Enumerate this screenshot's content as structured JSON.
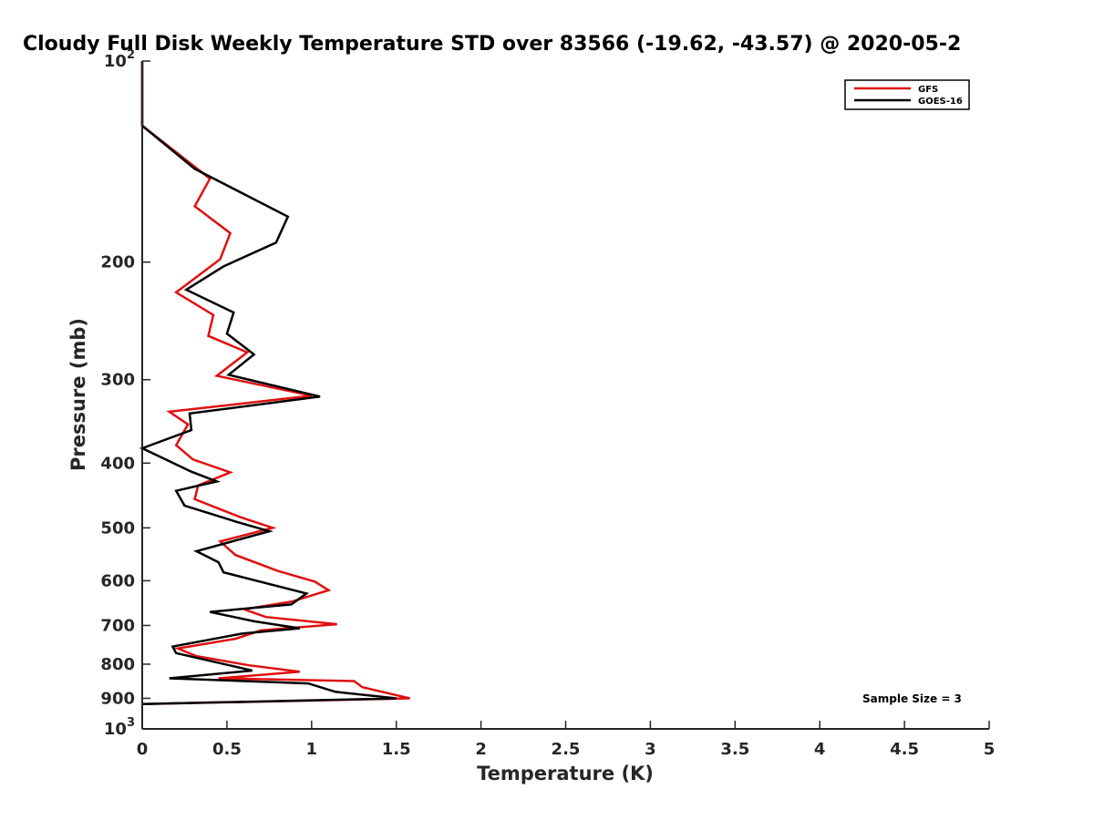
{
  "chart_data": {
    "type": "line",
    "title": "Cloudy Full Disk Weekly Temperature STD over 83566 (-19.62, -43.57) @ 2020-05-2",
    "xlabel": "Temperature (K)",
    "ylabel": "Pressure (mb)",
    "xlim": [
      0,
      5
    ],
    "ylim": [
      100,
      1000
    ],
    "yscale": "log",
    "y_reversed": true,
    "x_ticks": [
      "0",
      "0.5",
      "1",
      "1.5",
      "2",
      "2.5",
      "3",
      "3.5",
      "4",
      "4.5",
      "5"
    ],
    "y_ticks": [
      {
        "value": 100,
        "base": "10",
        "exp": "2"
      },
      {
        "value": 200,
        "label": "200"
      },
      {
        "value": 300,
        "label": "300"
      },
      {
        "value": 400,
        "label": "400"
      },
      {
        "value": 500,
        "label": "500"
      },
      {
        "value": 600,
        "label": "600"
      },
      {
        "value": 700,
        "label": "700"
      },
      {
        "value": 800,
        "label": "800"
      },
      {
        "value": 900,
        "label": "900"
      },
      {
        "value": 1000,
        "base": "10",
        "exp": "3"
      }
    ],
    "legend_position": "top-right",
    "annotation": "Sample Size = 3",
    "series": [
      {
        "name": "GFS",
        "color": "#e01010",
        "points": [
          [
            0,
            100
          ],
          [
            0,
            125
          ],
          [
            0.4,
            150
          ],
          [
            0.31,
            165
          ],
          [
            0.52,
            181
          ],
          [
            0.46,
            198
          ],
          [
            0.2,
            222
          ],
          [
            0.42,
            240
          ],
          [
            0.39,
            258
          ],
          [
            0.62,
            273
          ],
          [
            0.44,
            296
          ],
          [
            1.0,
            317
          ],
          [
            0.16,
            335
          ],
          [
            0.27,
            350
          ],
          [
            0.2,
            376
          ],
          [
            0.3,
            395
          ],
          [
            0.52,
            413
          ],
          [
            0.33,
            432
          ],
          [
            0.31,
            453
          ],
          [
            0.58,
            482
          ],
          [
            0.77,
            500
          ],
          [
            0.46,
            524
          ],
          [
            0.55,
            549
          ],
          [
            0.8,
            580
          ],
          [
            1.02,
            602
          ],
          [
            1.1,
            620
          ],
          [
            0.88,
            645
          ],
          [
            0.6,
            662
          ],
          [
            0.73,
            680
          ],
          [
            1.15,
            697
          ],
          [
            0.7,
            712
          ],
          [
            0.55,
            733
          ],
          [
            0.21,
            758
          ],
          [
            0.32,
            778
          ],
          [
            0.63,
            803
          ],
          [
            0.93,
            821
          ],
          [
            0.45,
            840
          ],
          [
            1.25,
            848
          ],
          [
            1.3,
            866
          ],
          [
            1.58,
            900
          ],
          [
            0,
            918
          ]
        ]
      },
      {
        "name": "GOES-16",
        "color": "#000000",
        "points": [
          [
            0,
            100
          ],
          [
            0,
            125
          ],
          [
            0.31,
            145
          ],
          [
            0.86,
            171
          ],
          [
            0.79,
            187
          ],
          [
            0.48,
            203
          ],
          [
            0.26,
            220
          ],
          [
            0.54,
            238
          ],
          [
            0.5,
            256
          ],
          [
            0.66,
            275
          ],
          [
            0.51,
            295
          ],
          [
            1.05,
            318
          ],
          [
            0.28,
            337
          ],
          [
            0.29,
            357
          ],
          [
            0.0,
            380
          ],
          [
            0.29,
            412
          ],
          [
            0.44,
            426
          ],
          [
            0.2,
            440
          ],
          [
            0.25,
            463
          ],
          [
            0.56,
            490
          ],
          [
            0.75,
            506
          ],
          [
            0.32,
            542
          ],
          [
            0.45,
            563
          ],
          [
            0.48,
            583
          ],
          [
            0.97,
            627
          ],
          [
            0.88,
            651
          ],
          [
            0.4,
            668
          ],
          [
            0.66,
            690
          ],
          [
            0.93,
            707
          ],
          [
            0.59,
            720
          ],
          [
            0.18,
            753
          ],
          [
            0.2,
            770
          ],
          [
            0.65,
            818
          ],
          [
            0.16,
            840
          ],
          [
            0.98,
            855
          ],
          [
            1.14,
            880
          ],
          [
            1.5,
            900
          ],
          [
            0,
            918
          ]
        ]
      }
    ]
  }
}
